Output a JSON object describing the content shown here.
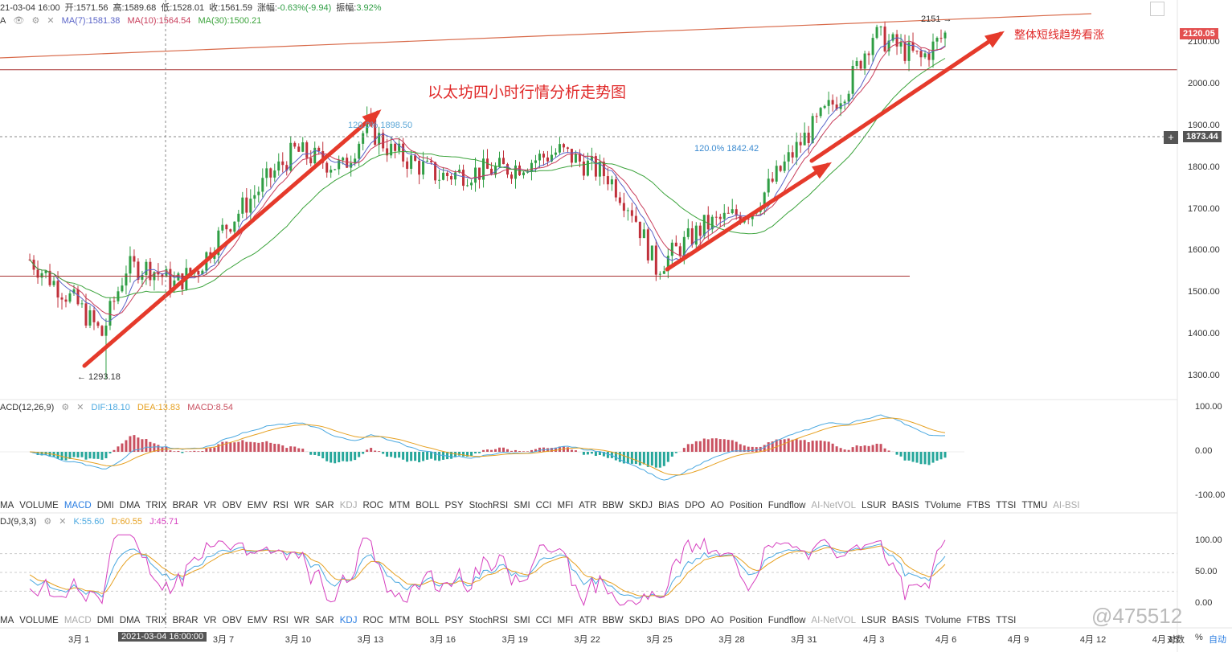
{
  "header": {
    "time": "21-03-04 16:00",
    "open_label": "开:",
    "open": "1571.56",
    "high_label": "高:",
    "high": "1589.68",
    "low_label": "低:",
    "low": "1528.01",
    "close_label": "收:",
    "close": "1561.59",
    "change_label": "涨幅:",
    "change": "-0.63%(-9.94)",
    "amp_label": "振幅:",
    "amp": "3.92%"
  },
  "ma_line": {
    "prefix": "A",
    "ma7": "MA(7):1581.38",
    "ma10": "MA(10):1564.54",
    "ma30": "MA(30):1500.21"
  },
  "colors": {
    "up": "#2f9e44",
    "down": "#c0313b",
    "ma7": "#5a64c8",
    "ma10": "#c83c5a",
    "ma30": "#3ba33b",
    "arrow": "#e53a2b",
    "macd_pos": "#c95060",
    "macd_neg": "#26a69a",
    "dif": "#4aa8e0",
    "dea": "#e6a020",
    "k": "#4aa8e0",
    "d": "#e6a020",
    "j": "#d63fbf"
  },
  "annotations": {
    "title": "以太坊四小时行情分析走势图",
    "trend": "整体短线趋势看涨",
    "fib1": "120.0% 1898.50",
    "fib2": "120.0% 1842.42",
    "low": "← 1293.18",
    "high": "2151 →"
  },
  "price_tags": {
    "current": "2120.05",
    "crosshair": "1873.44"
  },
  "price_axis": [
    "2100.00",
    "2000.00",
    "1900.00",
    "1800.00",
    "1700.00",
    "1600.00",
    "1500.00",
    "1400.00",
    "1300.00"
  ],
  "macd": {
    "label": "ACD(12,26,9)",
    "dif": "DIF:18.10",
    "dea": "DEA:13.83",
    "macd": "MACD:8.54",
    "axis": [
      "100.00",
      "0.00",
      "-100.00"
    ]
  },
  "kdj": {
    "label": "DJ(9,3,3)",
    "k": "K:55.60",
    "d": "D:60.55",
    "j": "J:45.71",
    "axis": [
      "100.00",
      "50.00",
      "0.00"
    ]
  },
  "indicator_tabs": [
    "MA",
    "VOLUME",
    "MACD",
    "DMI",
    "DMA",
    "TRIX",
    "BRAR",
    "VR",
    "OBV",
    "EMV",
    "RSI",
    "WR",
    "SAR",
    "KDJ",
    "ROC",
    "MTM",
    "BOLL",
    "PSY",
    "StochRSI",
    "SMI",
    "CCI",
    "MFI",
    "ATR",
    "BBW",
    "SKDJ",
    "BIAS",
    "DPO",
    "AO",
    "Position",
    "Fundflow",
    "AI-NetVOL",
    "LSUR",
    "BASIS",
    "TVolume",
    "FTBS",
    "TTSI",
    "TTMU",
    "AI-BSI"
  ],
  "indicator_tabs_2": [
    "MA",
    "VOLUME",
    "MACD",
    "DMI",
    "DMA",
    "TRIX",
    "BRAR",
    "VR",
    "OBV",
    "EMV",
    "RSI",
    "WR",
    "SAR",
    "KDJ",
    "ROC",
    "MTM",
    "BOLL",
    "PSY",
    "StochRSI",
    "SMI",
    "CCI",
    "MFI",
    "ATR",
    "BBW",
    "SKDJ",
    "BIAS",
    "DPO",
    "AO",
    "Position",
    "Fundflow",
    "AI-NetVOL",
    "LSUR",
    "BASIS",
    "TVolume",
    "FTBS",
    "TTSI"
  ],
  "time_axis": [
    "3月 1",
    "2021-03-04 16:00:00",
    "3月 7",
    "3月 10",
    "3月 13",
    "3月 16",
    "3月 19",
    "3月 22",
    "3月 25",
    "3月 28",
    "3月 31",
    "4月 3",
    "4月 6",
    "4月 9",
    "4月 12",
    "4月 15"
  ],
  "footer": {
    "log": "对数",
    "pct": "%",
    "auto": "自动"
  },
  "watermark": "@475512",
  "chart_data": {
    "type": "candlestick",
    "title": "以太坊四小时行情分析走势图",
    "ylim": [
      1250,
      2200
    ],
    "x_ticks": [
      "3月 1",
      "3月 4",
      "3月 7",
      "3月 10",
      "3月 13",
      "3月 16",
      "3月 19",
      "3月 22",
      "3月 25",
      "3月 28",
      "3月 31",
      "4月 3",
      "4月 6"
    ],
    "anchor_prices": [
      {
        "x": "3月 1",
        "price": 1470
      },
      {
        "x": "3月 2",
        "price": 1400
      },
      {
        "x": "3月 3",
        "price": 1560
      },
      {
        "x": "3月 4",
        "price": 1560
      },
      {
        "x": "3月 5",
        "price": 1520
      },
      {
        "x": "3月 6",
        "price": 1560
      },
      {
        "x": "3月 7",
        "price": 1650
      },
      {
        "x": "3月 9",
        "price": 1780
      },
      {
        "x": "3月 10",
        "price": 1840
      },
      {
        "x": "3月 12",
        "price": 1800
      },
      {
        "x": "3月 13",
        "price": 1900
      },
      {
        "x": "3月 14",
        "price": 1840
      },
      {
        "x": "3月 16",
        "price": 1780
      },
      {
        "x": "3月 19",
        "price": 1800
      },
      {
        "x": "3月 21",
        "price": 1840
      },
      {
        "x": "3月 23",
        "price": 1780
      },
      {
        "x": "3月 24",
        "price": 1700
      },
      {
        "x": "3月 25",
        "price": 1560
      },
      {
        "x": "3月 27",
        "price": 1660
      },
      {
        "x": "3月 29",
        "price": 1700
      },
      {
        "x": "3月 31",
        "price": 1860
      },
      {
        "x": "4月 2",
        "price": 2000
      },
      {
        "x": "4月 3",
        "price": 2120
      },
      {
        "x": "4月 5",
        "price": 2060
      },
      {
        "x": "4月 6",
        "price": 2120
      }
    ],
    "key_levels": {
      "high": 2151,
      "low": 1293.18,
      "support": 1540,
      "resistance": 2035
    },
    "macd": {
      "dif": 18.1,
      "dea": 13.83,
      "macd": 8.54
    },
    "kdj": {
      "k": 55.6,
      "d": 60.55,
      "j": 45.71
    }
  }
}
